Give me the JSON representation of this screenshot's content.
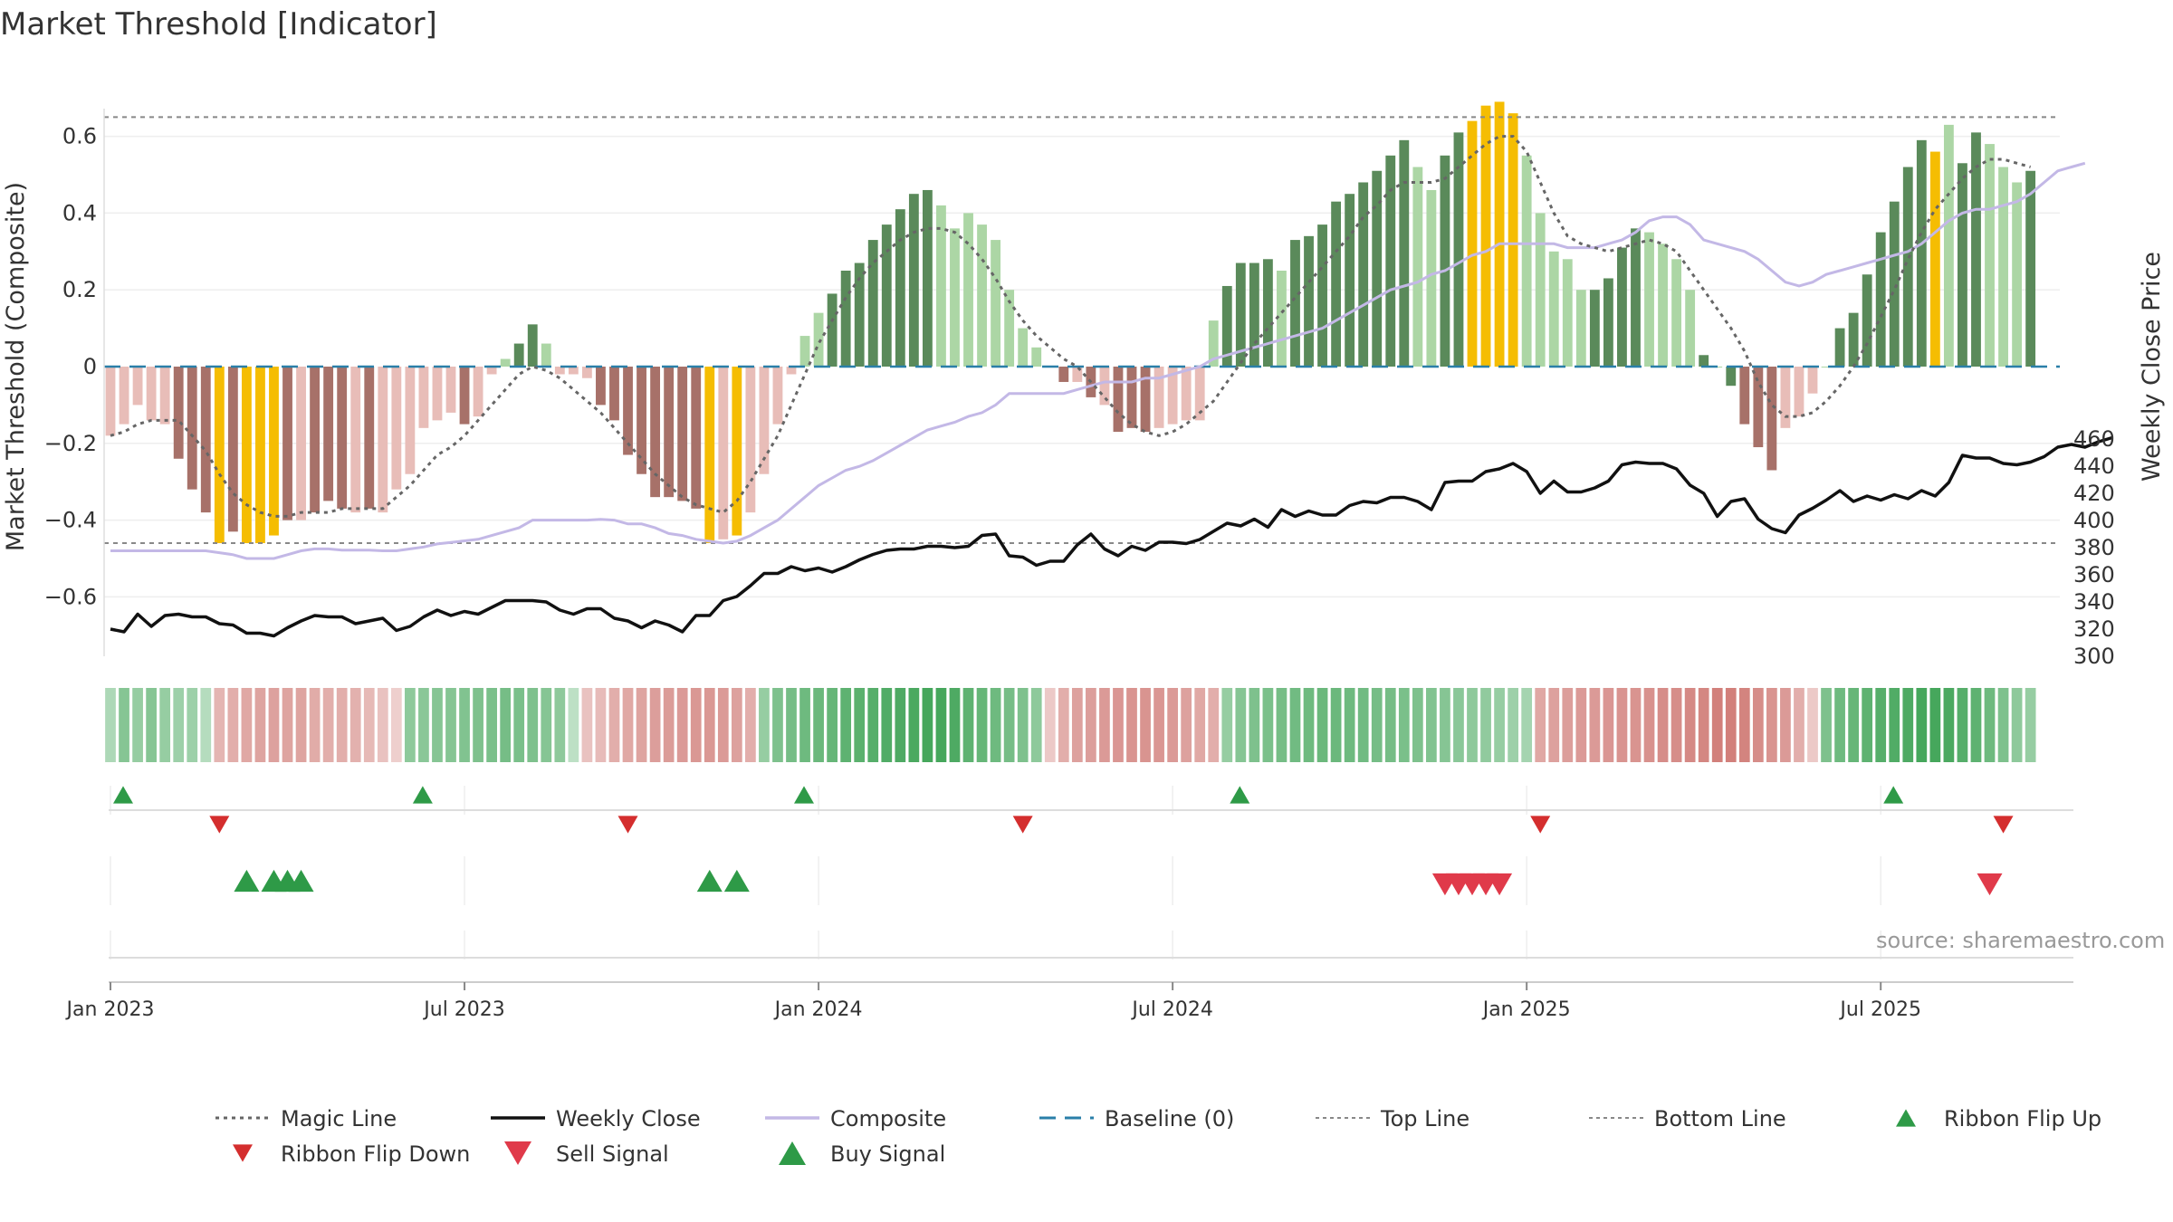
{
  "chart_data": {
    "type": "bar",
    "title": "Market Threshold [Indicator]",
    "ylabel_left": "Market Threshold (Composite)",
    "ylabel_right": "Weekly Close Price",
    "source": "source: sharemaestro.com",
    "ylim_left": [
      -0.75,
      0.75
    ],
    "ylim_right": [
      300,
      470
    ],
    "yticks_left": [
      0.6,
      0.4,
      0.2,
      0,
      -0.2,
      -0.4,
      -0.6
    ],
    "yticks_left_labels": [
      "0.6",
      "0.4",
      "0.2",
      "0",
      "−0.2",
      "−0.4",
      "−0.6"
    ],
    "yticks_right": [
      460,
      440,
      420,
      400,
      380,
      360,
      340,
      320,
      300
    ],
    "xticks": [
      {
        "label": "Jan 2023",
        "week": 0
      },
      {
        "label": "Jul 2023",
        "week": 26
      },
      {
        "label": "Jan 2024",
        "week": 52
      },
      {
        "label": "Jul 2024",
        "week": 78
      },
      {
        "label": "Jan 2025",
        "week": 104
      },
      {
        "label": "Jul 2025",
        "week": 130
      }
    ],
    "top_line": 0.65,
    "bottom_line": -0.46,
    "colors": {
      "strong_pos": "#5a8a5a",
      "weak_pos": "#acd6a5",
      "strong_neg": "#a77169",
      "weak_neg": "#e8bdb8",
      "extreme": "#f5bd02",
      "magic": "#666666",
      "close": "#111111",
      "composite": "#c3b8e6",
      "baseline": "#2a7fa8",
      "flip_up": "#2e9a47",
      "flip_down": "#d42e2e",
      "buy": "#2e9a47",
      "sell": "#e03a4a"
    },
    "composite_bars": [
      -0.18,
      -0.15,
      -0.1,
      -0.14,
      -0.15,
      -0.24,
      -0.32,
      -0.38,
      -0.46,
      -0.43,
      -0.46,
      -0.46,
      -0.44,
      -0.4,
      -0.4,
      -0.38,
      -0.35,
      -0.37,
      -0.38,
      -0.37,
      -0.38,
      -0.32,
      -0.28,
      -0.16,
      -0.14,
      -0.12,
      -0.15,
      -0.13,
      -0.02,
      0.02,
      0.06,
      0.11,
      0.06,
      -0.02,
      -0.02,
      -0.03,
      -0.1,
      -0.14,
      -0.23,
      -0.28,
      -0.34,
      -0.34,
      -0.35,
      -0.37,
      -0.46,
      -0.45,
      -0.44,
      -0.38,
      -0.28,
      -0.15,
      -0.02,
      0.08,
      0.14,
      0.19,
      0.25,
      0.27,
      0.33,
      0.37,
      0.41,
      0.45,
      0.46,
      0.42,
      0.36,
      0.4,
      0.37,
      0.33,
      0.2,
      0.1,
      0.05,
      0.0,
      -0.04,
      -0.04,
      -0.08,
      -0.1,
      -0.17,
      -0.16,
      -0.17,
      -0.16,
      -0.15,
      -0.14,
      -0.14,
      0.12,
      0.21,
      0.27,
      0.27,
      0.28,
      0.25,
      0.33,
      0.34,
      0.37,
      0.43,
      0.45,
      0.48,
      0.51,
      0.55,
      0.59,
      0.52,
      0.46,
      0.55,
      0.61,
      0.64,
      0.68,
      0.69,
      0.66,
      0.55,
      0.4,
      0.3,
      0.28,
      0.2,
      0.2,
      0.23,
      0.31,
      0.36,
      0.35,
      0.32,
      0.28,
      0.2,
      0.03,
      0.0,
      -0.05,
      -0.15,
      -0.21,
      -0.27,
      -0.16,
      -0.13,
      -0.07,
      0.0,
      0.1,
      0.14,
      0.24,
      0.35,
      0.43,
      0.52,
      0.59,
      0.56,
      0.63,
      0.53,
      0.61,
      0.58,
      0.52,
      0.48,
      0.51
    ],
    "bar_class": [
      "wn",
      "wn",
      "wn",
      "wn",
      "wn",
      "sn",
      "sn",
      "sn",
      "ex",
      "sn",
      "ex",
      "ex",
      "ex",
      "sn",
      "wn",
      "sn",
      "sn",
      "sn",
      "wn",
      "sn",
      "wn",
      "wn",
      "wn",
      "wn",
      "wn",
      "wn",
      "sn",
      "wn",
      "wn",
      "wp",
      "sp",
      "sp",
      "wp",
      "wn",
      "wn",
      "wn",
      "sn",
      "sn",
      "sn",
      "sn",
      "sn",
      "sn",
      "sn",
      "sn",
      "ex",
      "wn",
      "ex",
      "wn",
      "wn",
      "wn",
      "wn",
      "wp",
      "wp",
      "sp",
      "sp",
      "sp",
      "sp",
      "sp",
      "sp",
      "sp",
      "sp",
      "wp",
      "wp",
      "wp",
      "wp",
      "wp",
      "wp",
      "wp",
      "wp",
      "wp",
      "sn",
      "wn",
      "sn",
      "wn",
      "sn",
      "sn",
      "sn",
      "wn",
      "wn",
      "wn",
      "wn",
      "wp",
      "sp",
      "sp",
      "sp",
      "sp",
      "wp",
      "sp",
      "sp",
      "sp",
      "sp",
      "sp",
      "sp",
      "sp",
      "sp",
      "sp",
      "wp",
      "wp",
      "sp",
      "sp",
      "ex",
      "ex",
      "ex",
      "ex",
      "wp",
      "wp",
      "wp",
      "wp",
      "wp",
      "sp",
      "sp",
      "sp",
      "sp",
      "wp",
      "wp",
      "wp",
      "wp",
      "sp",
      "wp",
      "sp",
      "sn",
      "sn",
      "sn",
      "wn",
      "wn",
      "wn",
      "wp",
      "sp",
      "sp",
      "sp",
      "sp",
      "sp",
      "sp",
      "sp",
      "ex",
      "wp",
      "sp",
      "sp",
      "wp",
      "wp",
      "wp",
      "sp"
    ],
    "magic_line": [
      -0.18,
      -0.17,
      -0.15,
      -0.14,
      -0.14,
      -0.14,
      -0.18,
      -0.22,
      -0.28,
      -0.33,
      -0.36,
      -0.38,
      -0.39,
      -0.39,
      -0.38,
      -0.38,
      -0.38,
      -0.37,
      -0.37,
      -0.37,
      -0.37,
      -0.34,
      -0.31,
      -0.27,
      -0.23,
      -0.21,
      -0.18,
      -0.14,
      -0.1,
      -0.06,
      -0.02,
      0.0,
      -0.01,
      -0.03,
      -0.06,
      -0.09,
      -0.12,
      -0.16,
      -0.2,
      -0.24,
      -0.28,
      -0.31,
      -0.34,
      -0.36,
      -0.37,
      -0.38,
      -0.35,
      -0.3,
      -0.24,
      -0.18,
      -0.1,
      -0.02,
      0.06,
      0.12,
      0.18,
      0.23,
      0.27,
      0.3,
      0.33,
      0.35,
      0.36,
      0.36,
      0.35,
      0.32,
      0.28,
      0.23,
      0.17,
      0.12,
      0.08,
      0.05,
      0.02,
      0.0,
      -0.04,
      -0.08,
      -0.12,
      -0.15,
      -0.17,
      -0.18,
      -0.17,
      -0.15,
      -0.12,
      -0.09,
      -0.04,
      0.01,
      0.06,
      0.1,
      0.14,
      0.18,
      0.22,
      0.26,
      0.3,
      0.34,
      0.39,
      0.42,
      0.46,
      0.48,
      0.48,
      0.48,
      0.49,
      0.52,
      0.55,
      0.58,
      0.6,
      0.6,
      0.56,
      0.48,
      0.4,
      0.34,
      0.32,
      0.31,
      0.3,
      0.31,
      0.32,
      0.33,
      0.32,
      0.3,
      0.25,
      0.2,
      0.15,
      0.1,
      0.04,
      -0.04,
      -0.1,
      -0.13,
      -0.13,
      -0.12,
      -0.09,
      -0.05,
      0.0,
      0.06,
      0.13,
      0.2,
      0.28,
      0.35,
      0.41,
      0.45,
      0.49,
      0.52,
      0.54,
      0.54,
      0.53,
      0.52
    ],
    "weekly_close": [
      320,
      318,
      331,
      322,
      330,
      331,
      329,
      329,
      324,
      323,
      317,
      317,
      315,
      321,
      326,
      330,
      329,
      329,
      324,
      326,
      328,
      319,
      322,
      329,
      334,
      330,
      333,
      331,
      336,
      341,
      341,
      341,
      340,
      334,
      331,
      335,
      335,
      328,
      326,
      321,
      326,
      323,
      318,
      330,
      330,
      341,
      344,
      352,
      361,
      361,
      366,
      363,
      365,
      362,
      366,
      371,
      375,
      378,
      379,
      379,
      381,
      381,
      380,
      381,
      389,
      390,
      374,
      373,
      367,
      370,
      370,
      382,
      390,
      379,
      374,
      381,
      378,
      384,
      384,
      383,
      386,
      392,
      398,
      396,
      401,
      395,
      408,
      403,
      407,
      404,
      404,
      411,
      414,
      413,
      417,
      417,
      414,
      408,
      428,
      429,
      429,
      436,
      438,
      442,
      436,
      420,
      429,
      421,
      421,
      424,
      429,
      441,
      443,
      442,
      442,
      438,
      426,
      420,
      403,
      414,
      416,
      401,
      394,
      391,
      404,
      409,
      415,
      422,
      414,
      418,
      415,
      419,
      416,
      422,
      418,
      428,
      448,
      446,
      446,
      442,
      441,
      443,
      447,
      454,
      456,
      454,
      458,
      461
    ],
    "composite_line": [
      -0.48,
      -0.48,
      -0.48,
      -0.48,
      -0.48,
      -0.48,
      -0.48,
      -0.48,
      -0.485,
      -0.49,
      -0.5,
      -0.5,
      -0.5,
      -0.49,
      -0.48,
      -0.475,
      -0.475,
      -0.478,
      -0.478,
      -0.478,
      -0.48,
      -0.48,
      -0.475,
      -0.47,
      -0.462,
      -0.458,
      -0.454,
      -0.45,
      -0.44,
      -0.43,
      -0.42,
      -0.4,
      -0.4,
      -0.4,
      -0.4,
      -0.4,
      -0.398,
      -0.4,
      -0.41,
      -0.41,
      -0.42,
      -0.435,
      -0.44,
      -0.45,
      -0.455,
      -0.46,
      -0.455,
      -0.44,
      -0.42,
      -0.4,
      -0.37,
      -0.34,
      -0.31,
      -0.29,
      -0.27,
      -0.26,
      -0.245,
      -0.225,
      -0.205,
      -0.185,
      -0.165,
      -0.155,
      -0.145,
      -0.13,
      -0.12,
      -0.1,
      -0.07,
      -0.07,
      -0.07,
      -0.07,
      -0.07,
      -0.06,
      -0.05,
      -0.04,
      -0.04,
      -0.04,
      -0.03,
      -0.03,
      -0.02,
      -0.01,
      0.0,
      0.02,
      0.03,
      0.04,
      0.05,
      0.06,
      0.07,
      0.08,
      0.09,
      0.1,
      0.12,
      0.14,
      0.16,
      0.18,
      0.2,
      0.21,
      0.22,
      0.24,
      0.25,
      0.27,
      0.29,
      0.3,
      0.32,
      0.32,
      0.32,
      0.32,
      0.32,
      0.31,
      0.31,
      0.31,
      0.32,
      0.33,
      0.35,
      0.38,
      0.39,
      0.39,
      0.37,
      0.33,
      0.32,
      0.31,
      0.3,
      0.28,
      0.25,
      0.22,
      0.21,
      0.22,
      0.24,
      0.25,
      0.26,
      0.27,
      0.28,
      0.29,
      0.3,
      0.32,
      0.35,
      0.38,
      0.4,
      0.41,
      0.41,
      0.42,
      0.43,
      0.45,
      0.48,
      0.51,
      0.52,
      0.53
    ],
    "ribbon": [
      0.2,
      0.45,
      0.35,
      0.45,
      0.35,
      0.3,
      0.3,
      0.15,
      -0.25,
      -0.3,
      -0.35,
      -0.38,
      -0.4,
      -0.38,
      -0.38,
      -0.32,
      -0.3,
      -0.3,
      -0.28,
      -0.22,
      -0.15,
      -0.05,
      0.4,
      0.42,
      0.45,
      0.45,
      0.48,
      0.5,
      0.52,
      0.55,
      0.52,
      0.5,
      0.45,
      0.4,
      0.1,
      -0.15,
      -0.2,
      -0.3,
      -0.35,
      -0.38,
      -0.42,
      -0.44,
      -0.45,
      -0.47,
      -0.47,
      -0.45,
      -0.4,
      -0.3,
      0.35,
      0.5,
      0.55,
      0.6,
      0.62,
      0.65,
      0.7,
      0.72,
      0.75,
      0.78,
      0.8,
      0.82,
      0.85,
      0.85,
      0.8,
      0.7,
      0.65,
      0.6,
      0.55,
      0.5,
      0.4,
      -0.1,
      -0.3,
      -0.4,
      -0.42,
      -0.45,
      -0.48,
      -0.5,
      -0.5,
      -0.48,
      -0.45,
      -0.4,
      -0.35,
      -0.3,
      0.35,
      0.45,
      0.5,
      0.52,
      0.55,
      0.58,
      0.6,
      0.62,
      0.62,
      0.6,
      0.58,
      0.55,
      0.55,
      0.52,
      0.5,
      0.48,
      0.45,
      0.42,
      0.4,
      0.38,
      0.35,
      0.3,
      0.25,
      -0.35,
      -0.4,
      -0.42,
      -0.45,
      -0.45,
      -0.48,
      -0.5,
      -0.5,
      -0.52,
      -0.55,
      -0.55,
      -0.58,
      -0.6,
      -0.65,
      -0.65,
      -0.62,
      -0.55,
      -0.5,
      -0.45,
      -0.3,
      -0.1,
      0.5,
      0.6,
      0.65,
      0.7,
      0.75,
      0.78,
      0.8,
      0.85,
      0.85,
      0.82,
      0.75,
      0.7,
      0.6,
      0.5,
      0.4,
      0.35
    ],
    "ribbon_flip_up": [
      0,
      22,
      50,
      82,
      130
    ],
    "ribbon_flip_down": [
      8,
      38,
      67,
      105,
      139
    ],
    "buy_signals": [
      10,
      12,
      13,
      14,
      44,
      46
    ],
    "sell_signals": [
      98,
      99,
      100,
      101,
      102,
      138
    ],
    "legend": [
      {
        "label": "Magic Line",
        "kind": "dotted",
        "color": "#666666"
      },
      {
        "label": "Weekly Close",
        "kind": "solid",
        "color": "#111111"
      },
      {
        "label": "Composite",
        "kind": "solid",
        "color": "#c3b8e6"
      },
      {
        "label": "Baseline (0)",
        "kind": "dashed",
        "color": "#2a7fa8"
      },
      {
        "label": "Top Line",
        "kind": "dotted-light",
        "color": "#888888"
      },
      {
        "label": "Bottom Line",
        "kind": "dotted-light",
        "color": "#888888"
      },
      {
        "label": "Ribbon Flip Up",
        "kind": "tri-up",
        "color": "#2e9a47"
      },
      {
        "label": "Ribbon Flip Down",
        "kind": "tri-down",
        "color": "#d42e2e"
      },
      {
        "label": "Sell Signal",
        "kind": "tri-down-big",
        "color": "#e03a4a"
      },
      {
        "label": "Buy Signal",
        "kind": "tri-up-big",
        "color": "#2e9a47"
      }
    ]
  }
}
